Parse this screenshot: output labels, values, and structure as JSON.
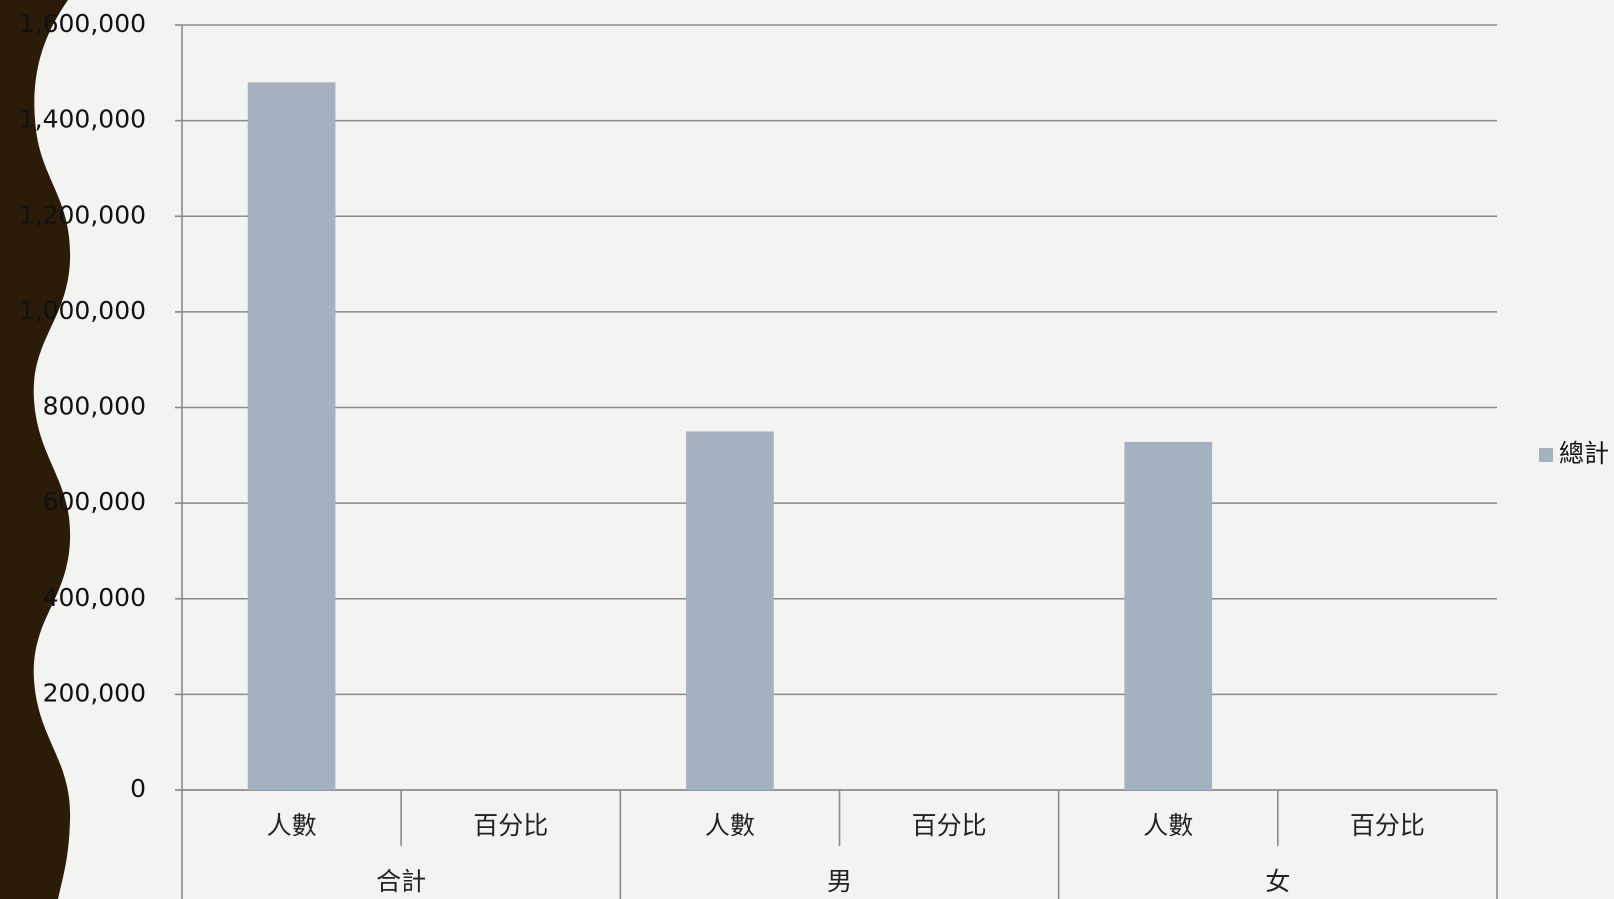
{
  "chart_data": {
    "type": "bar",
    "categories": [
      "人數",
      "百分比",
      "人數",
      "百分比",
      "人數",
      "百分比"
    ],
    "groups": [
      "合計",
      "男",
      "女"
    ],
    "series": [
      {
        "name": "總計",
        "color": "#a3b1c0",
        "values": [
          1480000,
          0,
          750000,
          0,
          728000,
          0
        ]
      }
    ],
    "ylim": [
      0,
      1600000
    ],
    "yticks": [
      0,
      {
        "value": 200000,
        "label": "200,000"
      },
      {
        "value": 400000,
        "label": "400,000"
      },
      {
        "value": 600000,
        "label": "600,000"
      },
      {
        "value": 800000,
        "label": "800,000"
      },
      {
        "value": 1000000,
        "label": "1,000,000"
      },
      {
        "value": 1200000,
        "label": "1,200,000"
      },
      {
        "value": 1400000,
        "label": "1,400,000"
      },
      {
        "value": 1600000,
        "label": "1,600,000"
      }
    ],
    "grid": true,
    "legend": "right"
  }
}
